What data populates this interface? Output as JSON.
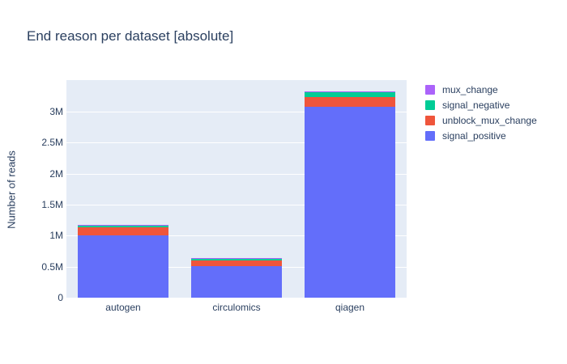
{
  "chart_data": {
    "type": "bar",
    "stacked": true,
    "title": "End reason per dataset [absolute]",
    "xlabel": "",
    "ylabel": "Number of reads",
    "categories": [
      "autogen",
      "circulomics",
      "qiagen"
    ],
    "series": [
      {
        "name": "signal_positive",
        "color": "#636efa",
        "values": [
          1000000,
          510000,
          3080000
        ]
      },
      {
        "name": "unblock_mux_change",
        "color": "#ef553b",
        "values": [
          130000,
          95000,
          150000
        ]
      },
      {
        "name": "signal_negative",
        "color": "#00cc96",
        "values": [
          35000,
          35000,
          95000
        ]
      },
      {
        "name": "mux_change",
        "color": "#ab63fa",
        "values": [
          4000,
          3000,
          6000
        ]
      }
    ],
    "legend_order": [
      "mux_change",
      "signal_negative",
      "unblock_mux_change",
      "signal_positive"
    ],
    "legend_position": "right",
    "yticks": [
      0,
      500000,
      1000000,
      1500000,
      2000000,
      2500000,
      3000000
    ],
    "ytick_labels": [
      "0",
      "0.5M",
      "1M",
      "1.5M",
      "2M",
      "2.5M",
      "3M"
    ],
    "ylim": [
      0,
      3510000
    ],
    "grid": true,
    "colors": {
      "plot_bgcolor": "#e5ecf6",
      "paper_bgcolor": "#ffffff",
      "gridcolor": "#ffffff",
      "text_color": "#2a3f5f"
    }
  }
}
